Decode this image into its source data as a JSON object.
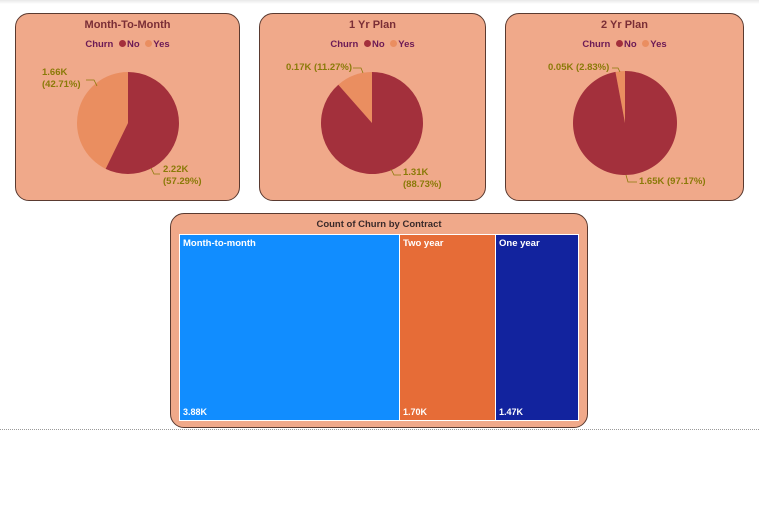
{
  "colors": {
    "no": "#a3303c",
    "yes": "#ea8e60",
    "card_bg": "#f0a98a",
    "label": "#8a7a08"
  },
  "chart_data": [
    {
      "type": "pie",
      "title": "Month-To-Month",
      "legend_title": "Churn",
      "legend": [
        "No",
        "Yes"
      ],
      "slices": [
        {
          "name": "No",
          "value": 2220,
          "label": "2.22K",
          "pct": "(57.29%)"
        },
        {
          "name": "Yes",
          "value": 1660,
          "label": "1.66K",
          "pct": "(42.71%)"
        }
      ]
    },
    {
      "type": "pie",
      "title": "1 Yr Plan",
      "legend_title": "Churn",
      "legend": [
        "No",
        "Yes"
      ],
      "slices": [
        {
          "name": "No",
          "value": 1310,
          "label": "1.31K",
          "pct": "(88.73%)"
        },
        {
          "name": "Yes",
          "value": 170,
          "label": "0.17K",
          "pct": "(11.27%)"
        }
      ]
    },
    {
      "type": "pie",
      "title": "2 Yr Plan",
      "legend_title": "Churn",
      "legend": [
        "No",
        "Yes"
      ],
      "slices": [
        {
          "name": "No",
          "value": 1650,
          "label": "1.65K",
          "pct": "(97.17%)"
        },
        {
          "name": "Yes",
          "value": 50,
          "label": "0.05K",
          "pct": "(2.83%)"
        }
      ]
    },
    {
      "type": "treemap",
      "title": "Count of Churn by Contract",
      "items": [
        {
          "name": "Month-to-month",
          "value": 3880,
          "label": "3.88K",
          "color": "#118dff"
        },
        {
          "name": "Two year",
          "value": 1700,
          "label": "1.70K",
          "color": "#e66c37"
        },
        {
          "name": "One year",
          "value": 1470,
          "label": "1.47K",
          "color": "#12239e"
        }
      ]
    }
  ]
}
